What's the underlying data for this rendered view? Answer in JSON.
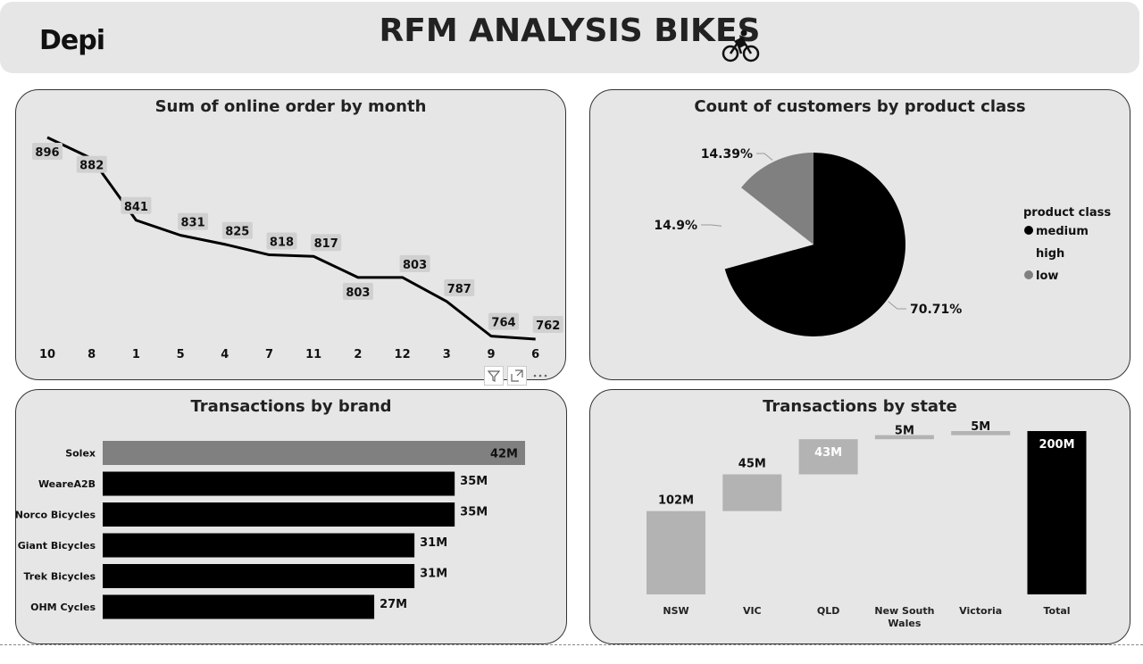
{
  "header": {
    "logo": "Depi",
    "title": "RFM ANALYSIS BIKES"
  },
  "charts": {
    "line_title": "Sum of online order by month",
    "pie_title": "Count of customers by product class",
    "bar_title": "Transactions by brand",
    "waterfall_title": "Transactions by state"
  },
  "chart_data": [
    {
      "type": "line",
      "title": "Sum of online order by month",
      "categories": [
        "10",
        "8",
        "1",
        "5",
        "4",
        "7",
        "11",
        "2",
        "12",
        "3",
        "9",
        "6"
      ],
      "values": [
        896,
        882,
        841,
        831,
        825,
        818,
        817,
        803,
        803,
        787,
        764,
        762
      ],
      "labels": [
        "896",
        "882",
        "841",
        "831",
        "825",
        "818",
        "817",
        "803",
        "803",
        "787",
        "764",
        "762"
      ],
      "color": "#000000",
      "label_bg": "#d0d0d0"
    },
    {
      "type": "pie",
      "title": "Count of customers by product class",
      "legend_title": "product class",
      "legend_position": "right",
      "slices": [
        {
          "name": "medium",
          "value": 70.71,
          "label": "70.71%",
          "color": "#000000"
        },
        {
          "name": "high",
          "value": 14.9,
          "label": "14.9%",
          "color": "#e6e6e6"
        },
        {
          "name": "low",
          "value": 14.39,
          "label": "14.39%",
          "color": "#808080"
        }
      ]
    },
    {
      "type": "bar",
      "title": "Transactions by brand",
      "orientation": "horizontal",
      "categories": [
        "Solex",
        "WeareA2B",
        "Norco Bicycles",
        "Giant Bicycles",
        "Trek Bicycles",
        "OHM Cycles"
      ],
      "values": [
        42,
        35,
        35,
        31,
        31,
        27
      ],
      "labels": [
        "42M",
        "35M",
        "35M",
        "31M",
        "31M",
        "27M"
      ],
      "colors": [
        "#808080",
        "#000000",
        "#000000",
        "#000000",
        "#000000",
        "#000000"
      ]
    },
    {
      "type": "waterfall",
      "title": "Transactions by state",
      "categories": [
        "NSW",
        "VIC",
        "QLD",
        "New South Wales",
        "Victoria",
        "Total"
      ],
      "category_lines": [
        [
          "NSW"
        ],
        [
          "VIC"
        ],
        [
          "QLD"
        ],
        [
          "New South",
          "Wales"
        ],
        [
          "Victoria"
        ],
        [
          "Total"
        ]
      ],
      "values": [
        102,
        45,
        43,
        5,
        5,
        200
      ],
      "labels": [
        "102M",
        "45M",
        "43M",
        "5M",
        "5M",
        "200M"
      ],
      "colors": {
        "increase": "#b3b3b3",
        "total": "#000000"
      }
    }
  ]
}
